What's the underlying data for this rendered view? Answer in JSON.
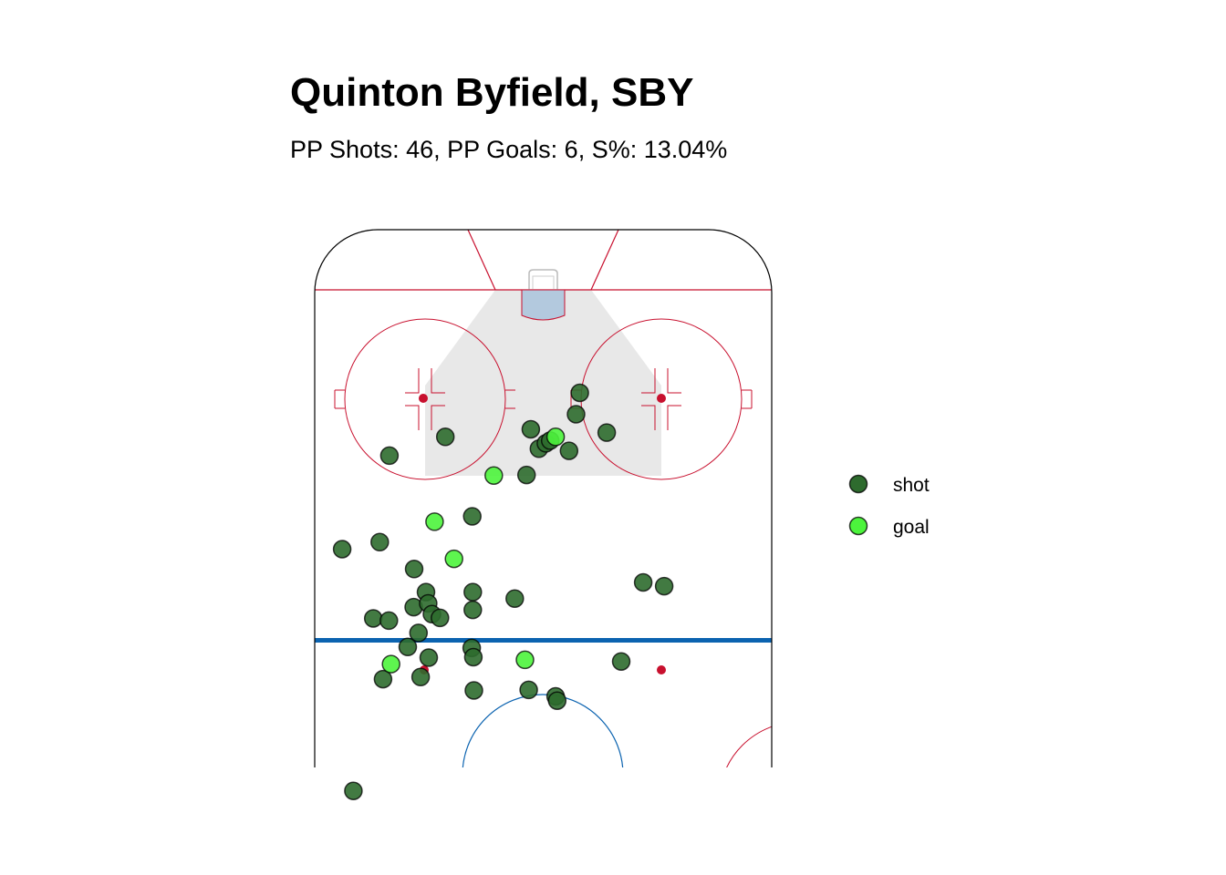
{
  "chart_data": {
    "type": "scatter",
    "title": "Quinton Byfield, SBY",
    "subtitle": "PP Shots: 46,   PP Goals: 6,   S%: 13.04%",
    "stats": {
      "pp_shots": 46,
      "pp_goals": 6,
      "shooting_pct": 13.04
    },
    "x_description": "lateral position (ft from rink centerline)",
    "y_description": "distance from center ice (ft)",
    "xlim": [
      -42.5,
      42.5
    ],
    "ylim": [
      0,
      100
    ],
    "legend": {
      "placement": "right",
      "entries": [
        {
          "label": "shot",
          "color": "#2e6b2e"
        },
        {
          "label": "goal",
          "color": "#4cf43c"
        }
      ]
    },
    "colors": {
      "shot": "#2e6b2e",
      "goal": "#4cf43c",
      "red_lines": "#c8102e",
      "blue_line": "#0b63b0",
      "crease": "#b3c9de",
      "slot": "#e8e8e8"
    },
    "series": [
      {
        "name": "shot",
        "points": [
          [
            -37.4,
            59.3
          ],
          [
            -28.6,
            76.7
          ],
          [
            -18.2,
            80.2
          ],
          [
            -30.4,
            60.6
          ],
          [
            -24.0,
            55.6
          ],
          [
            -21.8,
            51.3
          ],
          [
            -13.1,
            51.3
          ],
          [
            -24.1,
            48.5
          ],
          [
            -21.4,
            49.2
          ],
          [
            -20.7,
            47.2
          ],
          [
            -19.2,
            46.5
          ],
          [
            -31.6,
            46.4
          ],
          [
            -28.7,
            46.0
          ],
          [
            -23.2,
            43.7
          ],
          [
            -25.2,
            41.1
          ],
          [
            -21.3,
            39.1
          ],
          [
            -13.3,
            40.9
          ],
          [
            -13.0,
            39.2
          ],
          [
            -29.8,
            35.1
          ],
          [
            -22.8,
            35.5
          ],
          [
            -12.9,
            33.0
          ],
          [
            -5.3,
            50.1
          ],
          [
            -3.1,
            73.1
          ],
          [
            -2.3,
            81.6
          ],
          [
            -0.8,
            78.0
          ],
          [
            0.5,
            79.0
          ],
          [
            1.3,
            79.5
          ],
          [
            4.8,
            77.6
          ],
          [
            6.1,
            84.4
          ],
          [
            6.8,
            88.4
          ],
          [
            11.8,
            81.0
          ],
          [
            -13.2,
            65.4
          ],
          [
            -2.7,
            33.1
          ],
          [
            2.3,
            31.9
          ],
          [
            2.6,
            31.1
          ],
          [
            14.5,
            38.4
          ],
          [
            18.6,
            53.1
          ],
          [
            22.5,
            52.4
          ],
          [
            -35.3,
            14.3
          ],
          [
            -13.1,
            48.0
          ]
        ]
      },
      {
        "name": "goal",
        "points": [
          [
            -9.2,
            73.0
          ],
          [
            -20.2,
            64.4
          ],
          [
            -16.6,
            57.5
          ],
          [
            -28.3,
            37.9
          ],
          [
            -3.4,
            38.7
          ],
          [
            2.3,
            80.2
          ]
        ]
      }
    ]
  }
}
